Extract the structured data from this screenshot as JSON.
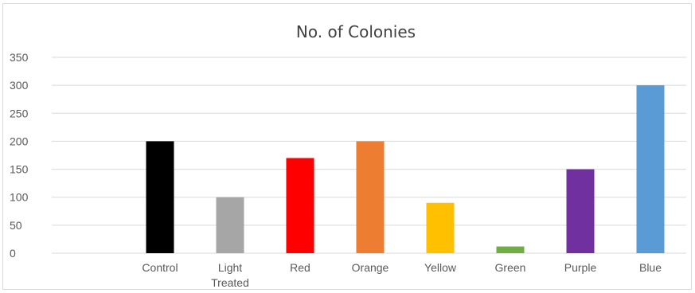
{
  "chart_data": {
    "type": "bar",
    "title": "No. of Colonies",
    "xlabel": "",
    "ylabel": "",
    "ylim": [
      0,
      350
    ],
    "yticks": [
      "0",
      "50",
      "100",
      "150",
      "200",
      "250",
      "300",
      "350"
    ],
    "grid": true,
    "categories": [
      {
        "line1": "Control",
        "line2": ""
      },
      {
        "line1": "Light",
        "line2": "Treated"
      },
      {
        "line1": "Red",
        "line2": ""
      },
      {
        "line1": "Orange",
        "line2": ""
      },
      {
        "line1": "Yellow",
        "line2": ""
      },
      {
        "line1": "Green",
        "line2": ""
      },
      {
        "line1": "Purple",
        "line2": ""
      },
      {
        "line1": "Blue",
        "line2": ""
      }
    ],
    "values": [
      200,
      100,
      170,
      200,
      90,
      12,
      150,
      300
    ],
    "colors": [
      "#000000",
      "#a6a6a6",
      "#ff0000",
      "#ed7d31",
      "#ffc000",
      "#70ad47",
      "#7030a0",
      "#5b9bd5"
    ]
  }
}
